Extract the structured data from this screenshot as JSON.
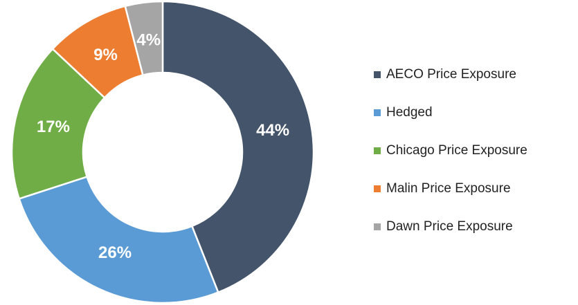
{
  "chart_data": {
    "type": "donut",
    "categories": [
      "AECO Price Exposure",
      "Hedged",
      "Chicago Price Exposure",
      "Malin Price Exposure",
      "Dawn Price Exposure"
    ],
    "values": [
      44,
      26,
      17,
      9,
      4
    ],
    "value_labels": [
      "44%",
      "26%",
      "17%",
      "9%",
      "4%"
    ],
    "colors": [
      "#44546a",
      "#5b9bd5",
      "#70ad47",
      "#ed7d31",
      "#a5a5a5"
    ],
    "legend": "right"
  }
}
